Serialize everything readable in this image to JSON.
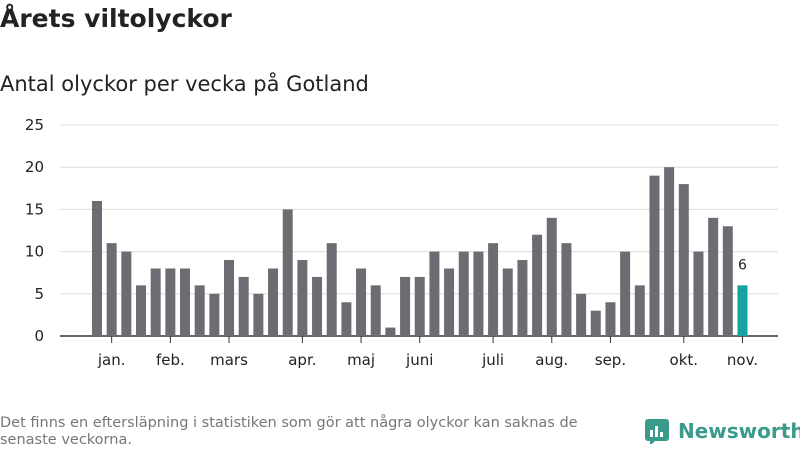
{
  "header": {
    "title": "Årets viltolyckor",
    "subtitle": "Antal olyckor per vecka på Gotland"
  },
  "chart_data": {
    "type": "bar",
    "title": "Årets viltolyckor",
    "subtitle": "Antal olyckor per vecka på Gotland",
    "xlabel": "",
    "ylabel": "",
    "ylim": [
      0,
      25
    ],
    "yticks": [
      0,
      5,
      10,
      15,
      20,
      25
    ],
    "grid": true,
    "values": [
      16,
      11,
      10,
      6,
      8,
      8,
      8,
      6,
      5,
      9,
      7,
      5,
      8,
      15,
      9,
      7,
      11,
      4,
      8,
      6,
      1,
      7,
      7,
      10,
      8,
      10,
      10,
      11,
      8,
      9,
      12,
      14,
      11,
      5,
      3,
      4,
      10,
      6,
      19,
      20,
      18,
      10,
      14,
      13,
      6
    ],
    "month_labels": [
      {
        "label": "jan.",
        "bar_index": 1
      },
      {
        "label": "feb.",
        "bar_index": 5
      },
      {
        "label": "mars",
        "bar_index": 9
      },
      {
        "label": "apr.",
        "bar_index": 14
      },
      {
        "label": "maj",
        "bar_index": 18
      },
      {
        "label": "juni",
        "bar_index": 22
      },
      {
        "label": "juli",
        "bar_index": 27
      },
      {
        "label": "aug.",
        "bar_index": 31
      },
      {
        "label": "sep.",
        "bar_index": 35
      },
      {
        "label": "okt.",
        "bar_index": 40
      },
      {
        "label": "nov.",
        "bar_index": 44
      }
    ],
    "highlight_index": 44,
    "highlight_label": "6",
    "colors": {
      "bar": "#6e6c72",
      "highlight": "#14a3a0",
      "grid": "#dcdcdc",
      "axis": "#333333"
    }
  },
  "footer": {
    "note": "Det finns en eftersläpning i statistiken som gör att några olyckor kan saknas de senaste veckorna.",
    "brand": "Newsworthy",
    "brand_icon": "newsworthy-logo-icon",
    "brand_color": "#3a9a8c"
  }
}
